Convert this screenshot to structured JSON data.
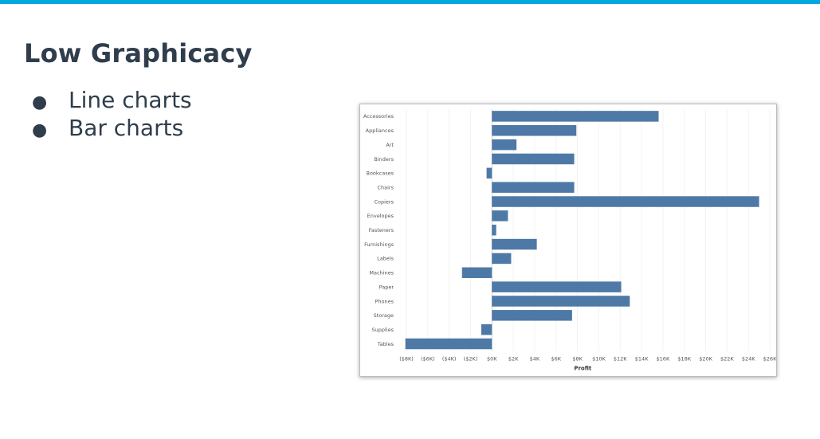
{
  "slide": {
    "title": "Low Graphicacy",
    "bullet_glyph": "●",
    "bullets": [
      "Line charts",
      "Bar charts"
    ]
  },
  "colors": {
    "accent_bar": "#00a9e0",
    "bar": "#4e79a7",
    "text": "#2f3d4c"
  },
  "chart_data": {
    "type": "bar",
    "orientation": "horizontal",
    "categories": [
      "Accessories",
      "Appliances",
      "Art",
      "Binders",
      "Bookcases",
      "Chairs",
      "Copiers",
      "Envelopes",
      "Fasteners",
      "Furnishings",
      "Labels",
      "Machines",
      "Paper",
      "Phones",
      "Storage",
      "Supplies",
      "Tables"
    ],
    "values": [
      15600,
      7900,
      2300,
      7700,
      -500,
      7700,
      25000,
      1500,
      400,
      4200,
      1800,
      -2800,
      12100,
      12900,
      7500,
      -1000,
      -8100
    ],
    "xlabel": "Profit",
    "ylabel": "",
    "xlim": [
      -8000,
      26000
    ],
    "x_ticks": [
      -8000,
      -6000,
      -4000,
      -2000,
      0,
      2000,
      4000,
      6000,
      8000,
      10000,
      12000,
      14000,
      16000,
      18000,
      20000,
      22000,
      24000,
      26000
    ],
    "x_tick_labels": [
      "($8K)",
      "($6K)",
      "($4K)",
      "($2K)",
      "$0K",
      "$2K",
      "$4K",
      "$6K",
      "$8K",
      "$10K",
      "$12K",
      "$14K",
      "$16K",
      "$18K",
      "$20K",
      "$22K",
      "$24K",
      "$26K"
    ],
    "grid": true,
    "legend": "none"
  }
}
